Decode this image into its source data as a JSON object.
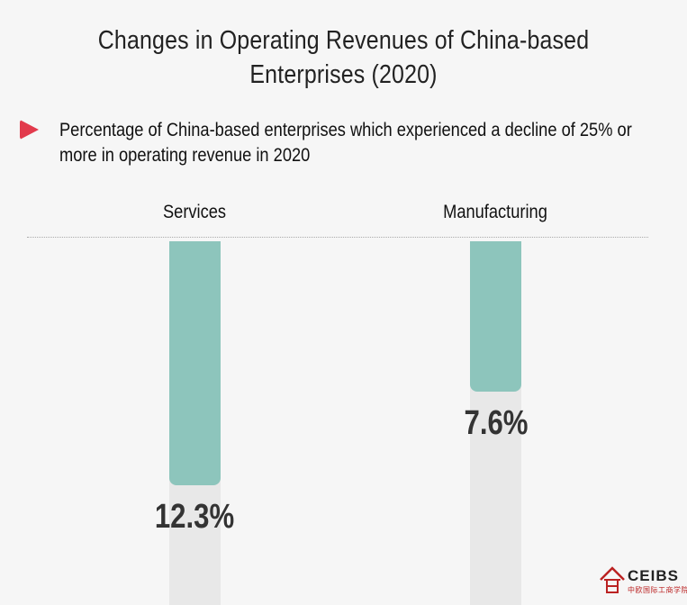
{
  "chart_data": {
    "type": "bar",
    "title": "Changes in Operating Revenues of China-based Enterprises (2020)",
    "subtitle": "Percentage of China-based enterprises which experienced a decline of 25% or more in operating revenue in 2020",
    "categories": [
      "Services",
      "Manufacturing"
    ],
    "values": [
      12.3,
      7.6
    ],
    "value_labels": [
      "12.3%",
      "7.6%"
    ],
    "xlabel": "",
    "ylabel": "",
    "ylim": [
      0,
      18.4
    ],
    "grid": false,
    "colors": {
      "fill": "#8dc5bc",
      "track": "#e8e8e8",
      "accent": "#e23a4c"
    }
  },
  "logo": {
    "name": "CEIBS",
    "chinese": "中欧国际工商学院"
  }
}
